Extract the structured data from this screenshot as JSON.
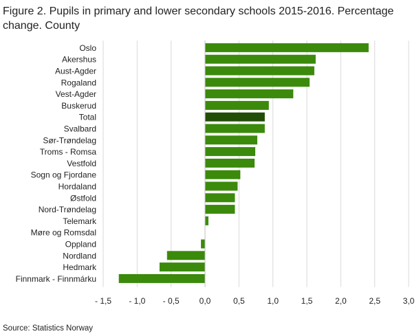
{
  "chart_data": {
    "type": "bar",
    "orientation": "horizontal",
    "title": "Figure 2. Pupils in primary and lower secondary schools 2015-2016. Percentage change. County",
    "source": "Source: Statistics Norway",
    "categories": [
      "Oslo",
      "Akershus",
      "Aust-Agder",
      "Rogaland",
      "Vest-Agder",
      "Buskerud",
      "Total",
      "Svalbard",
      "Sør-Trøndelag",
      "Troms - Romsa",
      "Vestfold",
      "Sogn og Fjordane",
      "Hordaland",
      "Østfold",
      "Nord-Trøndelag",
      "Telemark",
      "Møre og Romsdal",
      "Oppland",
      "Nordland",
      "Hedmark",
      "Finnmark - Finnmárku"
    ],
    "values": [
      2.41,
      1.63,
      1.61,
      1.54,
      1.3,
      0.94,
      0.88,
      0.88,
      0.77,
      0.74,
      0.73,
      0.52,
      0.48,
      0.44,
      0.44,
      0.05,
      0.0,
      -0.06,
      -0.56,
      -0.67,
      -1.27
    ],
    "highlight_category": "Total",
    "colors": {
      "bar": "#3b8a0c",
      "highlight": "#214d06",
      "grid": "#d9d9d9",
      "zero_line": "#bfbfbf"
    },
    "xlim": [
      -1.5,
      3.0
    ],
    "x_ticks": [
      -1.5,
      -1.0,
      -0.5,
      0.0,
      0.5,
      1.0,
      1.5,
      2.0,
      2.5,
      3.0
    ],
    "x_tick_labels": [
      "- 1,5",
      "- 1,0",
      "- 0,5",
      "0,0",
      "0,5",
      "1,0",
      "1,5",
      "2,0",
      "2,5",
      "3,0"
    ],
    "grid": true,
    "legend": "none"
  }
}
